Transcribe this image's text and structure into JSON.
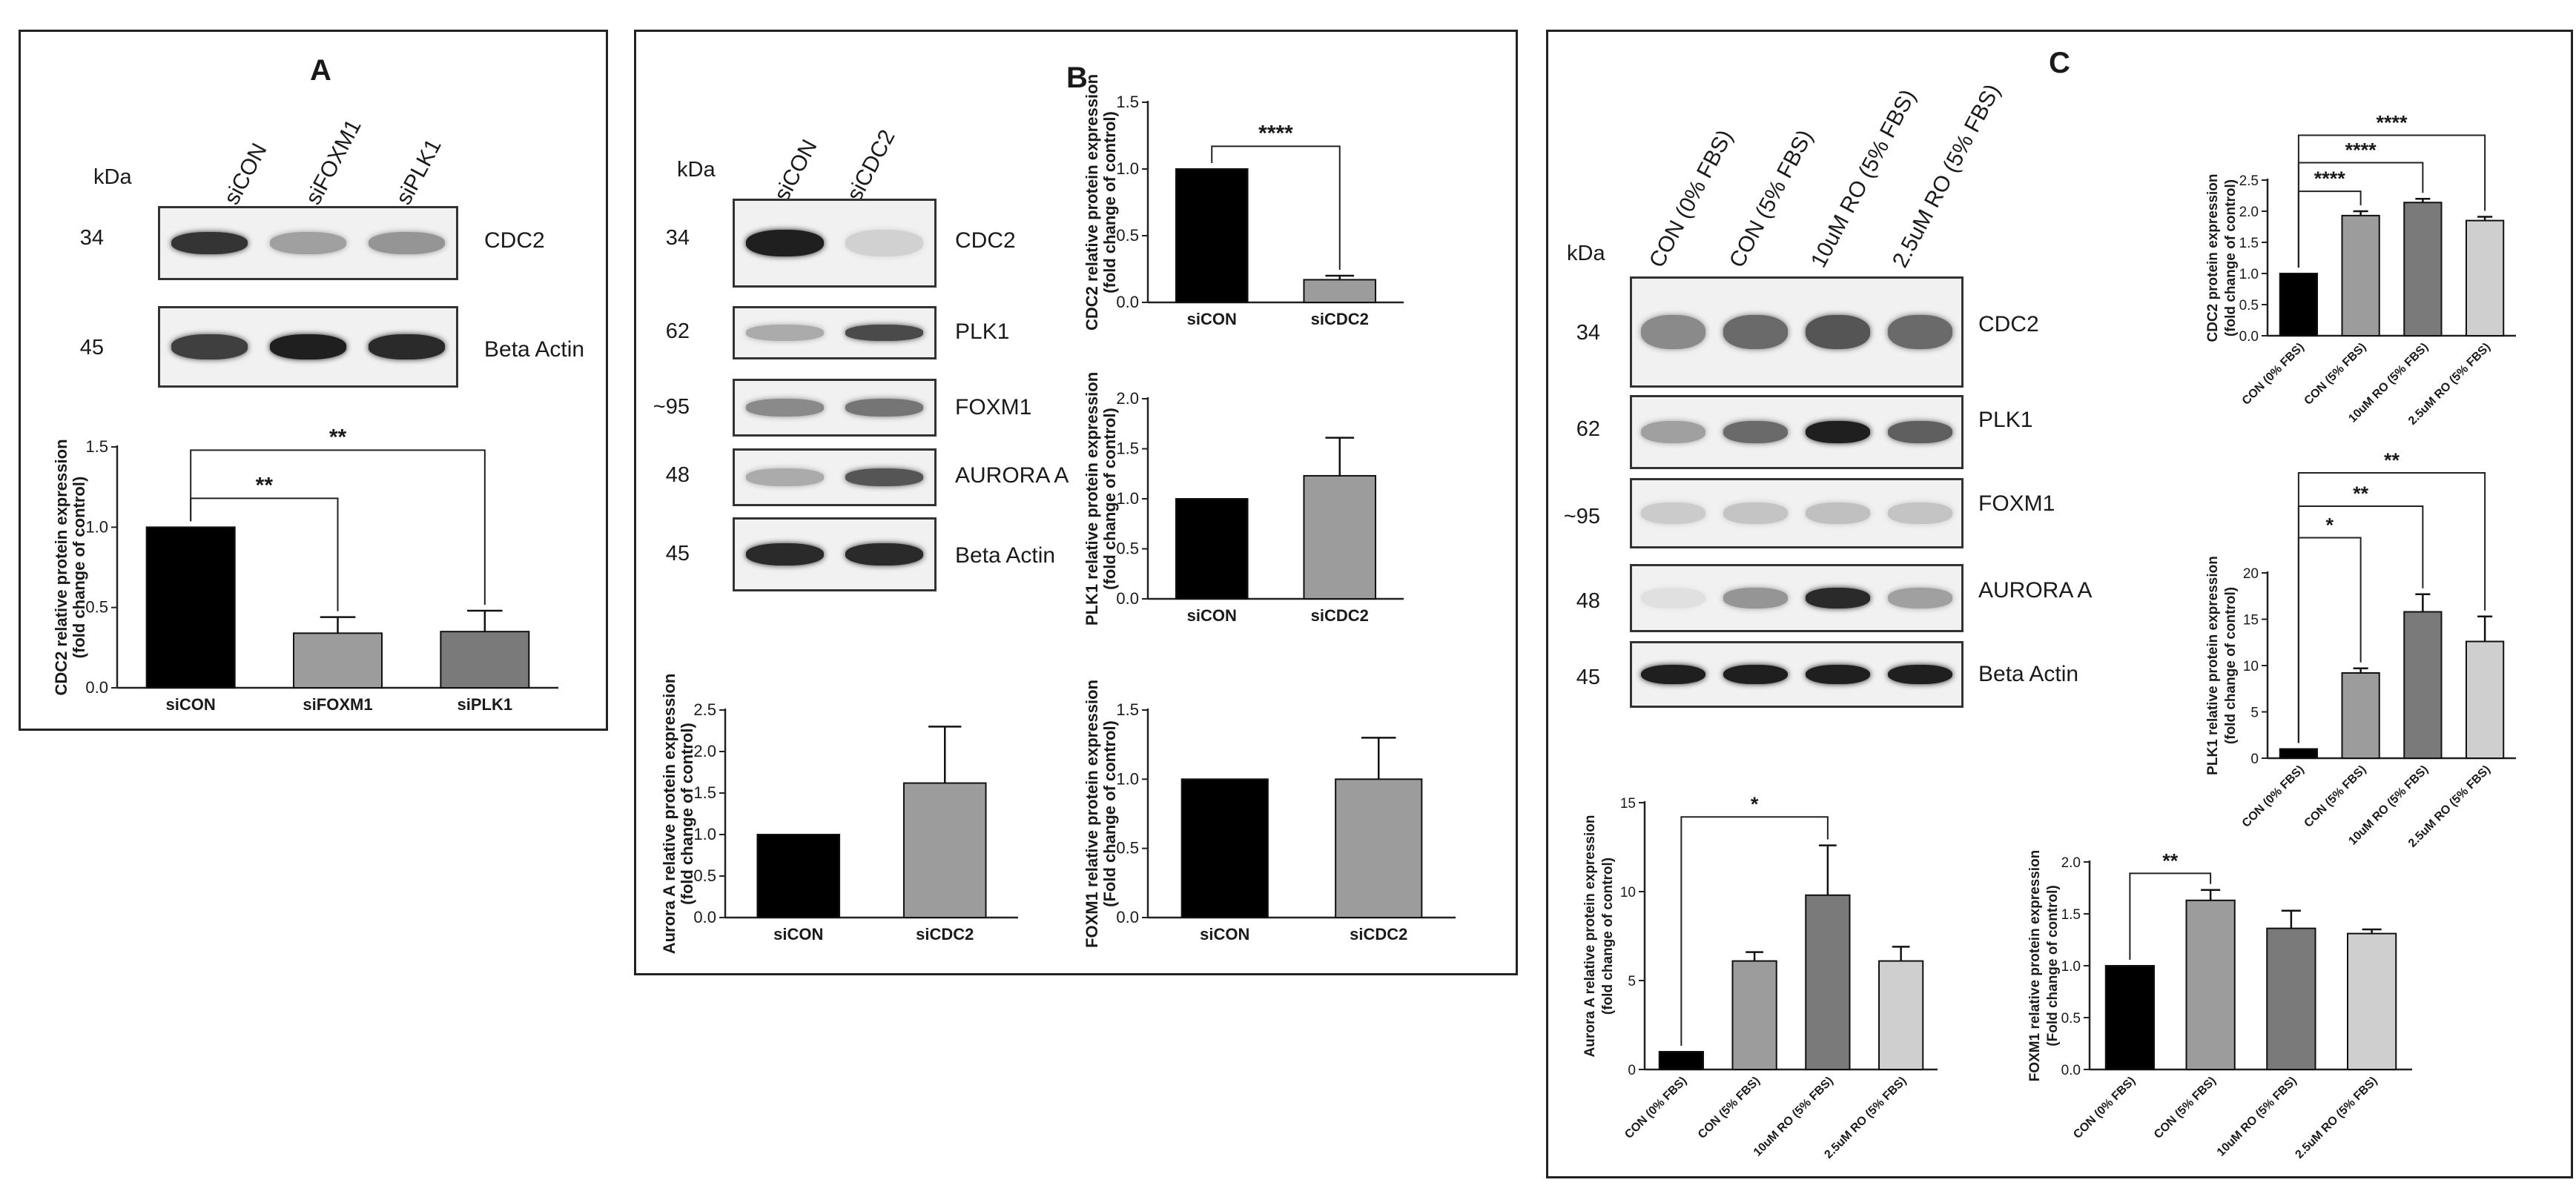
{
  "colors": {
    "bar_control": "#000000",
    "bar_1": "#9c9c9c",
    "bar_2": "#7a7a7a",
    "bar_3": "#cfcfcf",
    "frame": "#222222"
  },
  "panels": [
    {
      "letter": "A",
      "kda_title": "kDa",
      "lanes": [
        "siCON",
        "siFOXM1",
        "siPLK1"
      ],
      "blots": [
        {
          "mw": "34",
          "protein": "CDC2",
          "intensity": [
            0.85,
            0.35,
            0.4
          ]
        },
        {
          "mw": "45",
          "protein": "Beta Actin",
          "intensity": [
            0.8,
            0.95,
            0.9
          ]
        }
      ]
    },
    {
      "letter": "B",
      "kda_title": "kDa",
      "lanes": [
        "siCON",
        "siCDC2"
      ],
      "blots": [
        {
          "mw": "34",
          "protein": "CDC2",
          "intensity": [
            0.95,
            0.12
          ]
        },
        {
          "mw": "62",
          "protein": "PLK1",
          "intensity": [
            0.3,
            0.75
          ]
        },
        {
          "mw": "~95",
          "protein": "FOXM1",
          "intensity": [
            0.45,
            0.55
          ]
        },
        {
          "mw": "48",
          "protein": "AURORA A",
          "intensity": [
            0.3,
            0.7
          ]
        },
        {
          "mw": "45",
          "protein": "Beta Actin",
          "intensity": [
            0.9,
            0.9
          ]
        }
      ]
    },
    {
      "letter": "C",
      "kda_title": "kDa",
      "lanes": [
        "CON (0% FBS)",
        "CON (5% FBS)",
        "10uM RO (5% FBS)",
        "2.5uM RO (5% FBS)"
      ],
      "blots": [
        {
          "mw": "34",
          "protein": "CDC2",
          "intensity": [
            0.45,
            0.6,
            0.7,
            0.6
          ]
        },
        {
          "mw": "62",
          "protein": "PLK1",
          "intensity": [
            0.35,
            0.6,
            0.95,
            0.65
          ]
        },
        {
          "mw": "~95",
          "protein": "FOXM1",
          "intensity": [
            0.15,
            0.18,
            0.2,
            0.18
          ]
        },
        {
          "mw": "48",
          "protein": "AURORA A",
          "intensity": [
            0.05,
            0.4,
            0.9,
            0.35
          ]
        },
        {
          "mw": "45",
          "protein": "Beta Actin",
          "intensity": [
            0.95,
            0.95,
            0.95,
            0.95
          ]
        }
      ]
    }
  ],
  "chart_data": [
    {
      "id": "a_cdc2",
      "type": "bar",
      "ylabel": "CDC2 relative protein expression (fold change of control)",
      "categories": [
        "siCON",
        "siFOXM1",
        "siPLK1"
      ],
      "values": [
        1.0,
        0.34,
        0.35
      ],
      "errors": [
        0,
        0.1,
        0.13
      ],
      "ylim": [
        0,
        1.5
      ],
      "yticks": [
        "0.0",
        "0.5",
        "1.0",
        "1.5"
      ],
      "brackets": [
        {
          "from": 0,
          "to": 1,
          "label": "**",
          "level": 1.18
        },
        {
          "from": 0,
          "to": 2,
          "label": "**",
          "level": 1.48
        }
      ]
    },
    {
      "id": "b_cdc2",
      "type": "bar",
      "ylabel": "CDC2 relative protein expression (fold change of control)",
      "categories": [
        "siCON",
        "siCDC2"
      ],
      "values": [
        1.0,
        0.17
      ],
      "errors": [
        0,
        0.03
      ],
      "ylim": [
        0,
        1.5
      ],
      "yticks": [
        "0.0",
        "0.5",
        "1.0",
        "1.5"
      ],
      "brackets": [
        {
          "from": 0,
          "to": 1,
          "label": "****",
          "level": 1.17
        }
      ]
    },
    {
      "id": "b_plk1",
      "type": "bar",
      "ylabel": "PLK1 relative protein expression (fold change of control)",
      "categories": [
        "siCON",
        "siCDC2"
      ],
      "values": [
        1.0,
        1.23
      ],
      "errors": [
        0,
        0.38
      ],
      "ylim": [
        0,
        2.0
      ],
      "yticks": [
        "0.0",
        "0.5",
        "1.0",
        "1.5",
        "2.0"
      ],
      "brackets": []
    },
    {
      "id": "b_aurora",
      "type": "bar",
      "ylabel": "Aurora A relative protein expression (fold change of control)",
      "categories": [
        "siCON",
        "siCDC2"
      ],
      "values": [
        1.0,
        1.62
      ],
      "errors": [
        0,
        0.68
      ],
      "ylim": [
        0,
        2.5
      ],
      "yticks": [
        "0.0",
        "0.5",
        "1.0",
        "1.5",
        "2.0",
        "2.5"
      ],
      "brackets": []
    },
    {
      "id": "b_foxm1",
      "type": "bar",
      "ylabel": "FOXM1 relative protein expression (Fold change of control)",
      "categories": [
        "siCON",
        "siCDC2"
      ],
      "values": [
        1.0,
        1.0
      ],
      "errors": [
        0,
        0.3
      ],
      "ylim": [
        0,
        1.5
      ],
      "yticks": [
        "0.0",
        "0.5",
        "1.0",
        "1.5"
      ],
      "brackets": []
    },
    {
      "id": "c_cdc2",
      "type": "bar",
      "ylabel": "CDC2 protein expression (fold change of control)",
      "categories": [
        "CON (0% FBS)",
        "CON (5% FBS)",
        "10uM RO (5% FBS)",
        "2.5uM RO (5% FBS)"
      ],
      "values": [
        1.0,
        1.93,
        2.14,
        1.85
      ],
      "errors": [
        0,
        0.07,
        0.06,
        0.06
      ],
      "ylim": [
        0,
        2.5
      ],
      "yticks": [
        "0.0",
        "0.5",
        "1.0",
        "1.5",
        "2.0",
        "2.5"
      ],
      "brackets": [
        {
          "from": 0,
          "to": 1,
          "label": "****",
          "level": 2.32
        },
        {
          "from": 0,
          "to": 2,
          "label": "****",
          "level": 2.78
        },
        {
          "from": 0,
          "to": 3,
          "label": "****",
          "level": 3.22
        }
      ]
    },
    {
      "id": "c_plk1",
      "type": "bar",
      "ylabel": "PLK1 relative protein expression (fold change of control)",
      "categories": [
        "CON (0% FBS)",
        "CON (5% FBS)",
        "10uM RO (5% FBS)",
        "2.5uM RO (5% FBS)"
      ],
      "values": [
        1.0,
        9.2,
        15.8,
        12.6
      ],
      "errors": [
        0,
        0.5,
        1.9,
        2.7
      ],
      "ylim": [
        0,
        20
      ],
      "yticks": [
        "0",
        "5",
        "10",
        "15",
        "20"
      ],
      "brackets": [
        {
          "from": 0,
          "to": 1,
          "label": "*",
          "level": 23.8
        },
        {
          "from": 0,
          "to": 2,
          "label": "**",
          "level": 27.2
        },
        {
          "from": 0,
          "to": 3,
          "label": "**",
          "level": 30.8
        }
      ]
    },
    {
      "id": "c_aurora",
      "type": "bar",
      "ylabel": "Aurora A relative protein expression (fold change of control)",
      "categories": [
        "CON (0% FBS)",
        "CON (5% FBS)",
        "10uM RO (5% FBS)",
        "2.5uM RO (5% FBS)"
      ],
      "values": [
        1.0,
        6.1,
        9.8,
        6.1
      ],
      "errors": [
        0,
        0.5,
        2.8,
        0.8
      ],
      "ylim": [
        0,
        15
      ],
      "yticks": [
        "0",
        "5",
        "10",
        "15"
      ],
      "brackets": [
        {
          "from": 0,
          "to": 2,
          "label": "*",
          "level": 14.2
        }
      ]
    },
    {
      "id": "c_foxm1",
      "type": "bar",
      "ylabel": "FOXM1 relative protein expression (Fold change of control)",
      "categories": [
        "CON (0% FBS)",
        "CON (5% FBS)",
        "10uM RO (5% FBS)",
        "2.5uM RO (5% FBS)"
      ],
      "values": [
        1.0,
        1.63,
        1.36,
        1.31
      ],
      "errors": [
        0,
        0.1,
        0.17,
        0.04
      ],
      "ylim": [
        0,
        2.0
      ],
      "yticks": [
        "0.0",
        "0.5",
        "1.0",
        "1.5",
        "2.0"
      ],
      "brackets": [
        {
          "from": 0,
          "to": 1,
          "label": "**",
          "level": 1.89
        }
      ]
    }
  ]
}
